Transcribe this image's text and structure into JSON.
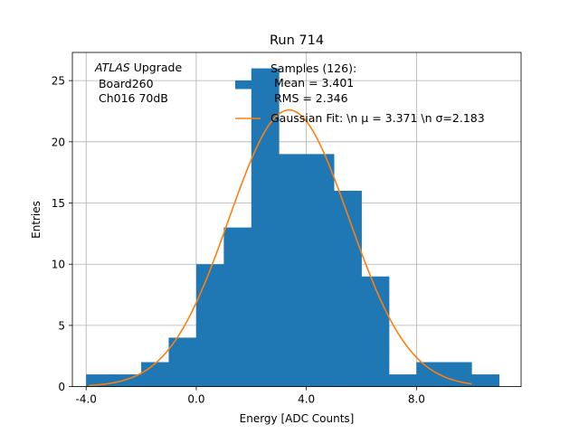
{
  "chart_data": {
    "type": "bar",
    "title": "Run 714",
    "xlabel": "Energy [ADC Counts]",
    "ylabel": "Entries",
    "xlim": [
      -4.5,
      11.8
    ],
    "ylim": [
      0,
      27.3
    ],
    "x_ticks": [
      -4.0,
      0.0,
      4.0,
      8.0
    ],
    "x_tick_labels": [
      "-4.0",
      "0.0",
      "4.0",
      "8.0"
    ],
    "y_ticks": [
      0,
      5,
      10,
      15,
      20,
      25
    ],
    "y_tick_labels": [
      "0",
      "5",
      "10",
      "15",
      "20",
      "25"
    ],
    "grid": true,
    "bins": [
      {
        "x0": -4,
        "x1": -3,
        "count": 1
      },
      {
        "x0": -3,
        "x1": -2,
        "count": 1
      },
      {
        "x0": -2,
        "x1": -1,
        "count": 2
      },
      {
        "x0": -1,
        "x1": 0,
        "count": 4
      },
      {
        "x0": 0,
        "x1": 1,
        "count": 10
      },
      {
        "x0": 1,
        "x1": 2,
        "count": 13
      },
      {
        "x0": 2,
        "x1": 3,
        "count": 26
      },
      {
        "x0": 3,
        "x1": 4,
        "count": 19
      },
      {
        "x0": 4,
        "x1": 5,
        "count": 19
      },
      {
        "x0": 5,
        "x1": 6,
        "count": 16
      },
      {
        "x0": 6,
        "x1": 7,
        "count": 9
      },
      {
        "x0": 7,
        "x1": 8,
        "count": 1
      },
      {
        "x0": 8,
        "x1": 9,
        "count": 2
      },
      {
        "x0": 9,
        "x1": 10,
        "count": 2
      },
      {
        "x0": 10,
        "x1": 11,
        "count": 1
      }
    ],
    "fit": {
      "amplitude": 22.6,
      "mu": 3.371,
      "sigma": 2.183,
      "x_range": [
        -3.9,
        10
      ]
    },
    "colors": {
      "bars": "#1f77b4",
      "fit": "#ff7f0e",
      "grid": "#b0b0b0"
    },
    "annotation": {
      "italic": "ATLAS",
      "rest": " Upgrade",
      "line2": " Board260",
      "line3": " Ch016 70dB"
    },
    "legend": {
      "placement": "top-right",
      "samples_line1": "Samples (126):",
      "samples_line2": " Mean = 3.401",
      "samples_line3": " RMS = 2.346",
      "fit_label": "Gaussian Fit: \\n μ = 3.371 \\n σ=2.183"
    }
  }
}
